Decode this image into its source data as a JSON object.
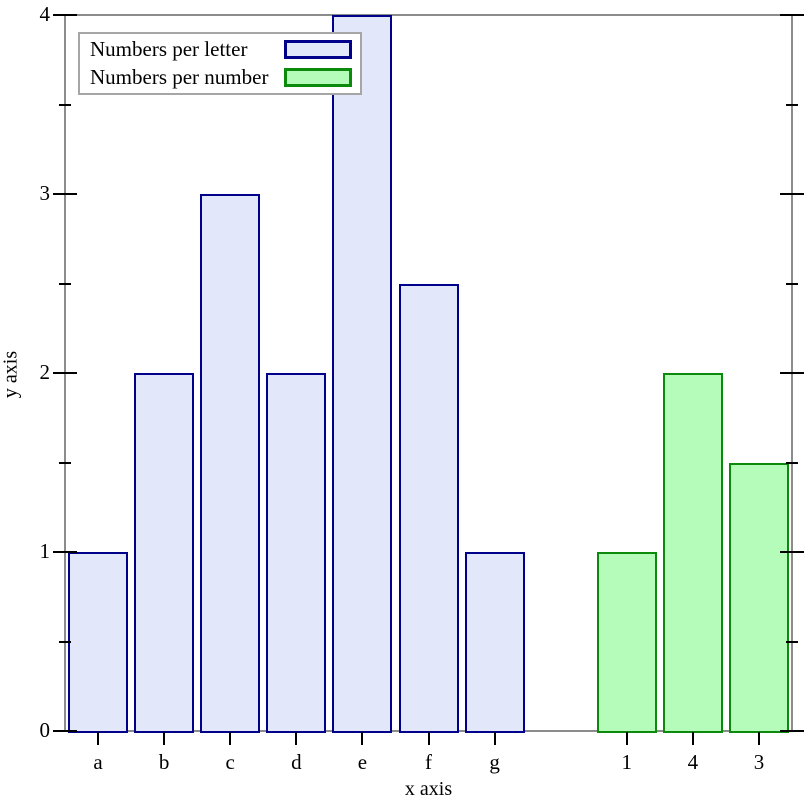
{
  "chart_data": {
    "type": "bar",
    "title": "",
    "xlabel": "x axis",
    "ylabel": "y axis",
    "ylim": [
      0,
      4
    ],
    "y_major_ticks": [
      0,
      1,
      2,
      3,
      4
    ],
    "y_minor_ticks": [
      0.5,
      1.5,
      2.5,
      3.5
    ],
    "grid": false,
    "legend_position": "top-left",
    "total_slots": 11,
    "series": [
      {
        "name": "Numbers per letter",
        "categories": [
          "a",
          "b",
          "c",
          "d",
          "e",
          "f",
          "g"
        ],
        "values": [
          1,
          2,
          3,
          2,
          4,
          2.5,
          1
        ],
        "slots": [
          0,
          1,
          2,
          3,
          4,
          5,
          6
        ],
        "fill_color": "#e2e7fa",
        "stroke_color": "#00008b"
      },
      {
        "name": "Numbers per number",
        "categories": [
          "1",
          "4",
          "3"
        ],
        "values": [
          1,
          2,
          1.5
        ],
        "slots": [
          8,
          9,
          10
        ],
        "fill_color": "#b5fcbb",
        "stroke_color": "#0b8a0b"
      }
    ]
  },
  "frame": {
    "line_color": "#8c8c8c",
    "tick_color": "#000000"
  },
  "legend": {
    "items": [
      {
        "label": "Numbers per letter"
      },
      {
        "label": "Numbers per number"
      }
    ]
  }
}
